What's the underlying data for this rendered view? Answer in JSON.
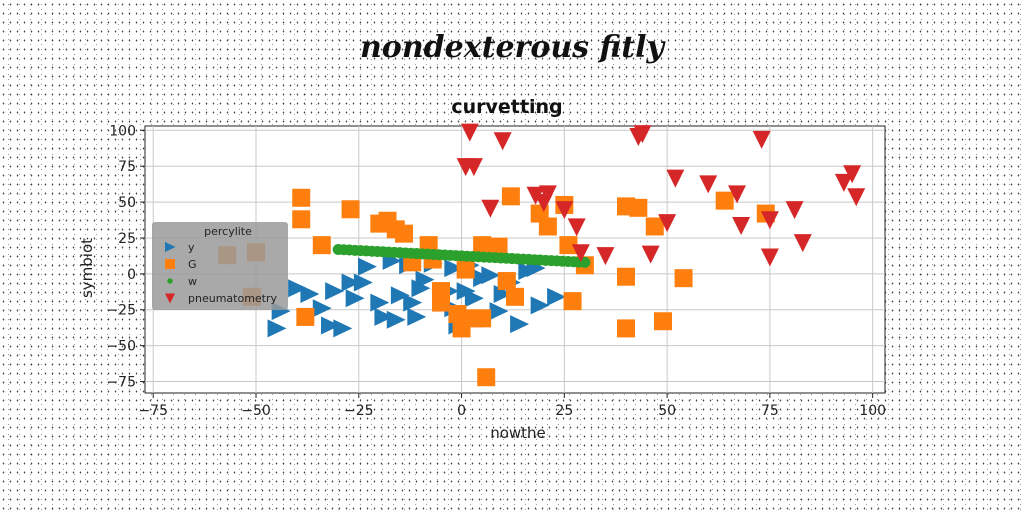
{
  "figure": {
    "suptitle": "nondexterous fitly"
  },
  "chart_data": {
    "type": "scatter",
    "title": "curvetting",
    "xlabel": "nowthe",
    "ylabel": "symbiot",
    "xlim": [
      -77,
      103
    ],
    "ylim": [
      -83,
      103
    ],
    "xticks": [
      -75,
      -50,
      -25,
      0,
      25,
      50,
      75,
      100
    ],
    "yticks": [
      -75,
      -50,
      -25,
      0,
      25,
      50,
      75,
      100
    ],
    "xtick_labels": [
      "−75",
      "−50",
      "−25",
      "0",
      "25",
      "50",
      "75",
      "100"
    ],
    "ytick_labels": [
      "−75",
      "−50",
      "−25",
      "0",
      "25",
      "50",
      "75",
      "100"
    ],
    "grid": true,
    "legend": {
      "title": "percylite",
      "placement": "center-left"
    },
    "series": [
      {
        "name": "y",
        "marker": "triangle-right",
        "color": "#1f77b4",
        "points": [
          [
            -45,
            -38
          ],
          [
            -44,
            -26
          ],
          [
            -37,
            -14
          ],
          [
            -31,
            -12
          ],
          [
            -34,
            -24
          ],
          [
            -32,
            -36
          ],
          [
            -29,
            -38
          ],
          [
            -27,
            -6
          ],
          [
            -24,
            -6
          ],
          [
            -20,
            -20
          ],
          [
            -19,
            -30
          ],
          [
            -16,
            -32
          ],
          [
            -12,
            -20
          ],
          [
            -11,
            -30
          ],
          [
            -10,
            -10
          ],
          [
            -9,
            -4
          ],
          [
            -5,
            -20
          ],
          [
            -3,
            -12
          ],
          [
            -2,
            -24
          ],
          [
            -1,
            -36
          ],
          [
            1,
            -12
          ],
          [
            3,
            -17
          ],
          [
            5,
            -3
          ],
          [
            7,
            -1
          ],
          [
            9,
            -26
          ],
          [
            10,
            -14
          ],
          [
            12,
            -6
          ],
          [
            14,
            -35
          ],
          [
            16,
            2
          ],
          [
            18,
            4
          ],
          [
            19,
            -22
          ],
          [
            23,
            -16
          ],
          [
            -23,
            5
          ],
          [
            -17,
            9
          ],
          [
            -13,
            6
          ],
          [
            -7,
            7
          ],
          [
            -2,
            4
          ],
          [
            2,
            6
          ],
          [
            11,
            -6
          ],
          [
            -40,
            -10
          ],
          [
            -26,
            -17
          ],
          [
            -15,
            -15
          ]
        ]
      },
      {
        "name": "G",
        "marker": "square",
        "color": "#ff7f0e",
        "points": [
          [
            -39,
            53
          ],
          [
            -39,
            38
          ],
          [
            -34,
            20
          ],
          [
            -27,
            45
          ],
          [
            -20,
            35
          ],
          [
            -18,
            37
          ],
          [
            -16,
            31
          ],
          [
            -14,
            28
          ],
          [
            -12,
            8
          ],
          [
            -8,
            20
          ],
          [
            -7,
            10
          ],
          [
            -5,
            -12
          ],
          [
            -5,
            -20
          ],
          [
            -1,
            -28
          ],
          [
            0,
            -38
          ],
          [
            1,
            3
          ],
          [
            3,
            -31
          ],
          [
            5,
            -31
          ],
          [
            5,
            20
          ],
          [
            9,
            19
          ],
          [
            11,
            -5
          ],
          [
            12,
            54
          ],
          [
            13,
            -16
          ],
          [
            19,
            42
          ],
          [
            21,
            33
          ],
          [
            25,
            48
          ],
          [
            26,
            20
          ],
          [
            27,
            -19
          ],
          [
            30,
            6
          ],
          [
            40,
            47
          ],
          [
            40,
            -2
          ],
          [
            40,
            -38
          ],
          [
            43,
            46
          ],
          [
            47,
            33
          ],
          [
            49,
            -33
          ],
          [
            54,
            -3
          ],
          [
            64,
            51
          ],
          [
            74,
            42
          ],
          [
            6,
            -72
          ],
          [
            -51,
            -16
          ],
          [
            -38,
            -30
          ],
          [
            -50,
            15
          ],
          [
            -57,
            13
          ]
        ]
      },
      {
        "name": "w",
        "marker": "circle",
        "color": "#2ca02c",
        "line": {
          "from": [
            -30,
            17
          ],
          "to": [
            30,
            8
          ]
        }
      },
      {
        "name": "pneumatometry",
        "marker": "triangle-down",
        "color": "#d62728",
        "points": [
          [
            2,
            99
          ],
          [
            10,
            93
          ],
          [
            1,
            75
          ],
          [
            3,
            75
          ],
          [
            7,
            46
          ],
          [
            18,
            55
          ],
          [
            20,
            50
          ],
          [
            21,
            56
          ],
          [
            25,
            45
          ],
          [
            28,
            33
          ],
          [
            29,
            15
          ],
          [
            35,
            13
          ],
          [
            43,
            96
          ],
          [
            44,
            98
          ],
          [
            46,
            14
          ],
          [
            50,
            36
          ],
          [
            52,
            67
          ],
          [
            60,
            63
          ],
          [
            67,
            56
          ],
          [
            68,
            34
          ],
          [
            73,
            94
          ],
          [
            75,
            12
          ],
          [
            75,
            38
          ],
          [
            81,
            45
          ],
          [
            83,
            22
          ],
          [
            93,
            64
          ],
          [
            95,
            70
          ],
          [
            96,
            54
          ]
        ]
      }
    ]
  }
}
